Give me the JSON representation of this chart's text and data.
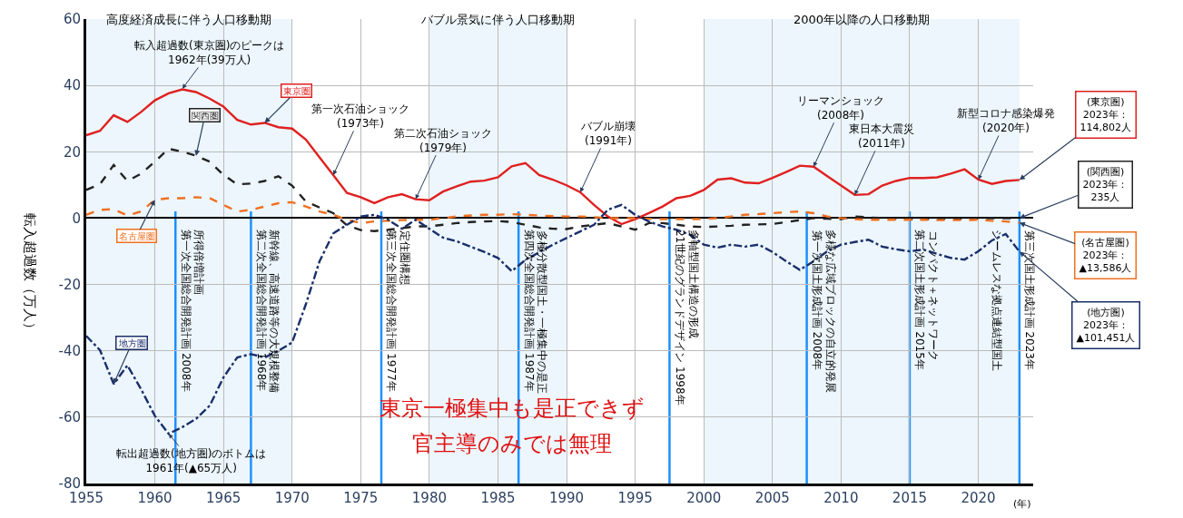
{
  "chart_data": {
    "type": "line",
    "ylabel": "転入超過数（万人）",
    "xlabel": "(年)",
    "x": [
      1955,
      1956,
      1957,
      1958,
      1959,
      1960,
      1961,
      1962,
      1963,
      1964,
      1965,
      1966,
      1967,
      1968,
      1969,
      1970,
      1971,
      1972,
      1973,
      1974,
      1975,
      1976,
      1977,
      1978,
      1979,
      1980,
      1981,
      1982,
      1983,
      1984,
      1985,
      1986,
      1987,
      1988,
      1989,
      1990,
      1991,
      1992,
      1993,
      1994,
      1995,
      1996,
      1997,
      1998,
      1999,
      2000,
      2001,
      2002,
      2003,
      2004,
      2005,
      2006,
      2007,
      2008,
      2009,
      2010,
      2011,
      2012,
      2013,
      2014,
      2015,
      2016,
      2017,
      2018,
      2019,
      2020,
      2021,
      2022,
      2023
    ],
    "series": [
      {
        "name": "東京圏",
        "color": "#e02020",
        "line_style": "solid",
        "values": [
          25,
          26.3,
          31,
          29,
          32,
          35.5,
          37.6,
          38.8,
          38,
          36,
          33.6,
          29.6,
          28.2,
          28.7,
          27.4,
          27,
          23.7,
          18.3,
          13,
          7.6,
          6.3,
          4.5,
          6.3,
          7.2,
          5.7,
          5.4,
          8,
          9.6,
          11,
          11.3,
          12.3,
          15.6,
          16.6,
          13,
          11.6,
          9.9,
          7.8,
          4,
          0.5,
          -1.8,
          -0.3,
          1.5,
          3.5,
          6,
          6.7,
          8.5,
          11.6,
          12,
          10.7,
          10.5,
          12.1,
          13.9,
          15.8,
          15.5,
          12.6,
          9.8,
          7,
          7.2,
          9.8,
          11.2,
          12.1,
          12.1,
          12.3,
          13.4,
          14.7,
          11.6,
          10.3,
          11.2,
          11.5
        ]
      },
      {
        "name": "関西圏",
        "color": "#222222",
        "line_style": "dashed",
        "values": [
          8.5,
          10.2,
          16,
          11.2,
          13.4,
          17,
          20.9,
          20,
          18.8,
          17,
          13,
          10.2,
          10.4,
          11.2,
          12.6,
          9.8,
          5,
          3.2,
          1.5,
          -2.2,
          -3.6,
          -3.9,
          -3.5,
          -3,
          -2.5,
          -2.5,
          -2,
          -1.5,
          -1.2,
          -1,
          -0.9,
          -1.2,
          -2,
          -2.8,
          -3.2,
          -3.3,
          -2.5,
          -2,
          -1.5,
          -2.5,
          -3.5,
          -1.5,
          -1.5,
          -2,
          -2.5,
          -2.7,
          -2.5,
          -2.3,
          -2,
          -1.9,
          -1.8,
          -1.2,
          -0.6,
          0,
          -0.2,
          -0.3,
          0.5,
          0.2,
          0,
          -0.2,
          -0.3,
          -0.3,
          -0.2,
          -0.2,
          -0.2,
          -0.1,
          0,
          0,
          0
        ]
      },
      {
        "name": "名古屋圏",
        "color": "#f07020",
        "line_style": "dashed",
        "values": [
          1,
          2.5,
          2.7,
          0.8,
          2,
          5.5,
          6,
          6,
          6.3,
          6,
          4,
          2,
          2.5,
          3.5,
          4.5,
          4.8,
          3.5,
          2,
          1,
          -0.5,
          -1.5,
          -1,
          -0.8,
          -0.6,
          -0.5,
          -0.5,
          0,
          0.5,
          0.8,
          1,
          1,
          1.2,
          1,
          0.8,
          0.6,
          0.5,
          0.5,
          0.3,
          0,
          0,
          0,
          -0.2,
          -0.3,
          -0.3,
          -0.3,
          -0.3,
          0,
          0.5,
          1,
          1.2,
          1.5,
          1.8,
          2,
          1.5,
          0.5,
          0,
          -0.3,
          -0.5,
          -0.5,
          -0.5,
          -0.5,
          -0.5,
          -0.6,
          -0.6,
          -0.6,
          -0.5,
          -0.8,
          -1,
          -1.4
        ]
      },
      {
        "name": "地方圏",
        "color": "#1a2f6b",
        "line_style": "dashdot",
        "values": [
          -35.5,
          -39.8,
          -50,
          -44.4,
          -51.6,
          -59.6,
          -65,
          -63,
          -60.5,
          -56.5,
          -48,
          -42,
          -41,
          -42,
          -40,
          -37.5,
          -26,
          -13,
          -4.6,
          -2,
          0.5,
          1,
          -0.5,
          -3.2,
          -0.5,
          -3.2,
          -5.9,
          -7,
          -8.6,
          -10.2,
          -12,
          -16,
          -12.6,
          -10.3,
          -8,
          -6,
          -4,
          -2,
          2.5,
          4,
          1,
          -1,
          -2.5,
          -3.5,
          -5,
          -8,
          -8.9,
          -8,
          -8.6,
          -8,
          -10.2,
          -13,
          -15.6,
          -13,
          -10,
          -8,
          -7.2,
          -6.5,
          -8.6,
          -9.4,
          -10,
          -9.5,
          -10.8,
          -12,
          -12.5,
          -10,
          -6.7,
          -4.8,
          -10.1
        ]
      }
    ],
    "xlim": [
      1955,
      2024
    ],
    "xticks": [
      1955,
      1960,
      1965,
      1970,
      1975,
      1980,
      1985,
      1990,
      1995,
      2000,
      2005,
      2010,
      2015,
      2020
    ],
    "ylim": [
      -80,
      60
    ],
    "yticks": [
      -80,
      -60,
      -40,
      -20,
      0,
      20,
      40,
      60
    ],
    "grid": true,
    "legend": false,
    "bands": [
      {
        "axis": "x",
        "from": 1955,
        "to": 1970,
        "label": "高度経済成長に伴う人口移動期",
        "color": "#bfe0f5"
      },
      {
        "axis": "x",
        "from": 1980,
        "to": 1990,
        "label": "バブル景気に伴う人口移動期",
        "color": "#bfe0f5"
      },
      {
        "axis": "x",
        "from": 2000,
        "to": 2023,
        "label": "2000年以降の人口移動期",
        "color": "#bfe0f5"
      }
    ],
    "ref_lines": [
      {
        "axis": "x",
        "value": 1961.5,
        "label": "第一次全国総合開発計画 2008年",
        "color": "#1e90ff"
      },
      {
        "axis": "x",
        "value": 1967,
        "label": "第二次全国総合開発計画 1968年",
        "color": "#1e90ff"
      },
      {
        "axis": "x",
        "value": 1976.5,
        "label": "第三次全国総合開発計画 1977年",
        "color": "#1e90ff"
      },
      {
        "axis": "x",
        "value": 1986.5,
        "label": "第四次全国総合開発計画 1987年",
        "color": "#1e90ff"
      },
      {
        "axis": "x",
        "value": 1997.5,
        "label": "21世紀のグランドデザイン 1998年",
        "color": "#1e90ff"
      },
      {
        "axis": "x",
        "value": 2007.5,
        "label": "第一次国土形成計画 2008年",
        "color": "#1e90ff"
      },
      {
        "axis": "x",
        "value": 2015,
        "label": "第二次国土形成計画 2015年",
        "color": "#1e90ff"
      },
      {
        "axis": "x",
        "value": 2023,
        "label": "第三次国土形成計画 2023年",
        "color": "#1e90ff"
      }
    ],
    "annotations": [
      "東京一極集中も是正できず",
      "官主導のみでは無理",
      "所得倍増計画",
      "新幹線、高速道路等の大規模整備",
      "定住圏構想",
      "多極分散型国土・一極集中の是正",
      "多軸型国土構造の形成",
      "多様な広域ブロックの自立的発展",
      "コンパクト＋ネットワーク",
      "シームレスな拠点連結型国土",
      {
        "text": "転入超過数(東京圏)のピークは\n1962年(39万人)",
        "x": 1962,
        "y": 39
      },
      {
        "text": "転出超過数(地方圏)のボトムは\n1961年(▲65万人)",
        "x": 1961,
        "y": -65
      },
      {
        "text": "第一次石油ショック\n(1973年)",
        "x": 1973,
        "y": 13
      },
      {
        "text": "第二次石油ショック\n(1979年)",
        "x": 1979,
        "y": 5.7
      },
      {
        "text": "バブル崩壊\n(1991年)",
        "x": 1991,
        "y": 7.8
      },
      {
        "text": "リーマンショック\n(2008年)",
        "x": 2008,
        "y": 15.5
      },
      {
        "text": "東日本大震災\n(2011年)",
        "x": 2011,
        "y": 7
      },
      {
        "text": "新型コロナ感染爆発\n(2020年)",
        "x": 2020,
        "y": 11.6
      },
      {
        "text": "(東京圏)\n2023年：\n114,802人",
        "x": 2023,
        "y": 11.5
      },
      {
        "text": "(関西圏)\n2023年：\n235人",
        "x": 2023,
        "y": 0
      },
      {
        "text": "(名古屋圏)\n2023年：\n▲13,586人",
        "x": 2023,
        "y": -1.4
      },
      {
        "text": "(地方圏)\n2023年：\n▲101,451人",
        "x": 2023,
        "y": -10.1
      }
    ]
  }
}
